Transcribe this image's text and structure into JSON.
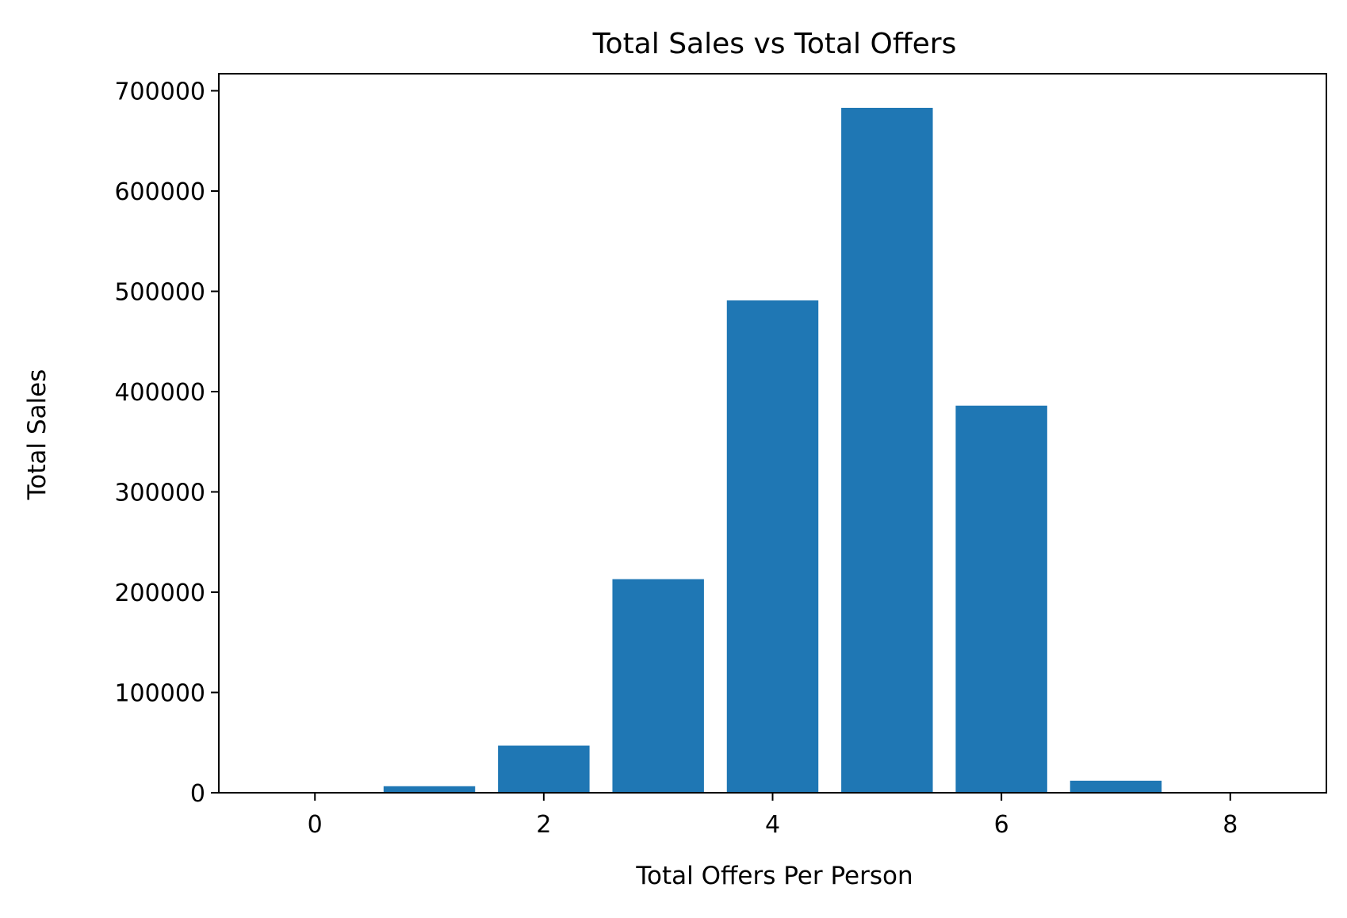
{
  "chart_data": {
    "type": "bar",
    "title": "Total Sales vs Total Offers",
    "xlabel": "Total Offers Per Person",
    "ylabel": "Total Sales",
    "x": [
      0,
      1,
      2,
      3,
      4,
      5,
      6,
      7,
      8
    ],
    "values": [
      0,
      6500,
      47000,
      213000,
      491000,
      683000,
      386000,
      12000,
      0
    ],
    "xlim": [
      -0.84,
      8.84
    ],
    "ylim": [
      0,
      717000
    ],
    "x_ticks": [
      0,
      2,
      4,
      6,
      8
    ],
    "x_tick_labels": [
      "0",
      "2",
      "4",
      "6",
      "8"
    ],
    "y_ticks": [
      0,
      100000,
      200000,
      300000,
      400000,
      500000,
      600000,
      700000
    ],
    "y_tick_labels": [
      "0",
      "100000",
      "200000",
      "300000",
      "400000",
      "500000",
      "600000",
      "700000"
    ],
    "bar_width": 0.8,
    "bar_color": "#1f77b4",
    "grid": false,
    "legend": "none"
  }
}
